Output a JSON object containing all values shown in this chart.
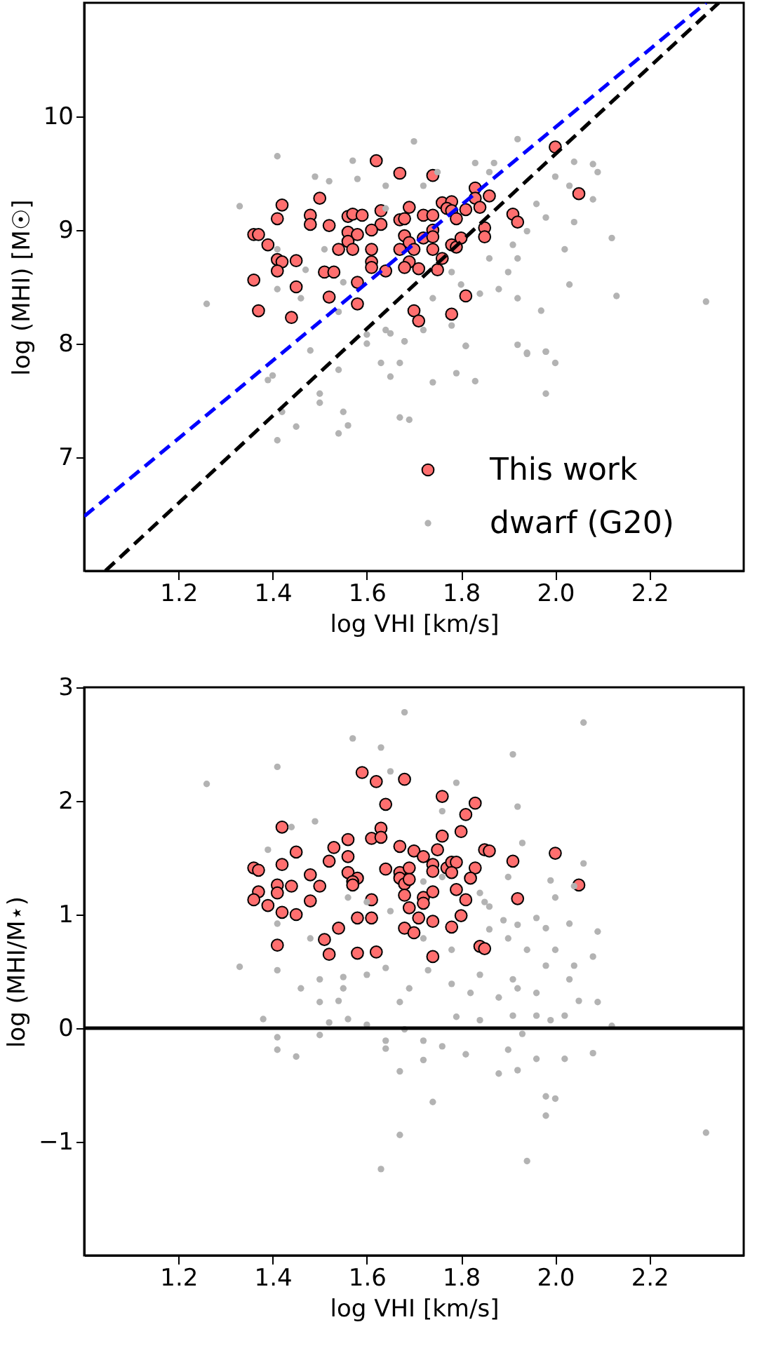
{
  "chart_data": [
    {
      "type": "scatter",
      "xlabel": "log VHI [km/s]",
      "ylabel": "log (MHI) [M☉]",
      "xlim": [
        1.0,
        2.4
      ],
      "xticks": [
        {
          "value": 1.2,
          "label": "1.2"
        },
        {
          "value": 1.4,
          "label": "1.4"
        },
        {
          "value": 1.6,
          "label": "1.6"
        },
        {
          "value": 1.8,
          "label": "1.8"
        },
        {
          "value": 2.0,
          "label": "2.0"
        },
        {
          "value": 2.2,
          "label": "2.2"
        }
      ],
      "ylim": [
        6,
        11
      ],
      "yticks": [
        7,
        8,
        9,
        10
      ],
      "legend": "bottom right",
      "marker": "circle",
      "series": [
        {
          "name": "This work",
          "color": "#ff6f6f",
          "x": [
            1.62,
            1.67,
            1.74,
            2.0,
            2.05,
            1.42,
            1.5,
            1.41,
            1.48,
            1.48,
            1.52,
            1.56,
            1.57,
            1.59,
            1.63,
            1.63,
            1.67,
            1.68,
            1.69,
            1.72,
            1.74,
            1.76,
            1.78,
            1.77,
            1.78,
            1.79,
            1.81,
            1.83,
            1.83,
            1.84,
            1.86,
            1.91,
            1.92,
            1.36,
            1.37,
            1.39,
            1.56,
            1.58,
            1.56,
            1.54,
            1.57,
            1.61,
            1.68,
            1.69,
            1.72,
            1.74,
            1.74,
            1.67,
            1.7,
            1.61,
            1.74,
            1.78,
            1.79,
            1.8,
            1.85,
            1.85,
            1.76,
            1.69,
            1.71,
            1.68,
            1.64,
            1.61,
            1.61,
            1.75,
            1.41,
            1.42,
            1.45,
            1.41,
            1.51,
            1.53,
            1.36,
            1.45,
            1.58,
            1.52,
            1.37,
            1.44,
            1.58,
            1.7,
            1.71,
            1.78,
            1.81
          ],
          "values": [
            9.61,
            9.5,
            9.48,
            9.73,
            9.32,
            9.22,
            9.28,
            9.1,
            9.13,
            9.05,
            9.04,
            9.12,
            9.14,
            9.13,
            9.17,
            9.05,
            9.09,
            9.1,
            9.2,
            9.13,
            9.13,
            9.24,
            9.25,
            9.19,
            9.17,
            9.1,
            9.18,
            9.37,
            9.28,
            9.2,
            9.3,
            9.14,
            9.07,
            8.96,
            8.96,
            8.87,
            8.98,
            8.96,
            8.9,
            8.83,
            8.83,
            9.0,
            8.95,
            8.89,
            8.93,
            9.0,
            8.94,
            8.83,
            8.83,
            8.83,
            8.83,
            8.87,
            8.85,
            8.93,
            9.02,
            8.94,
            8.75,
            8.72,
            8.66,
            8.67,
            8.64,
            8.72,
            8.67,
            8.65,
            8.74,
            8.72,
            8.73,
            8.64,
            8.63,
            8.63,
            8.56,
            8.5,
            8.54,
            8.41,
            8.29,
            8.23,
            8.35,
            8.29,
            8.2,
            8.26,
            8.42
          ]
        },
        {
          "name": "dwarf (G20)",
          "color": "#b3b3b3",
          "x": [
            1.7,
            1.41,
            1.57,
            1.92,
            1.83,
            2.09,
            2.08,
            1.33,
            1.26,
            2.12,
            2.13,
            2.03,
            1.97,
            1.98,
            1.94,
            1.81,
            1.68,
            1.6,
            1.55,
            1.47,
            1.49,
            1.52,
            1.64,
            1.72,
            1.86,
            1.87,
            2.0,
            2.04,
            1.96,
            1.98,
            1.94,
            1.91,
            1.86,
            1.9,
            2.02,
            2.04,
            2.08,
            1.92,
            1.8,
            1.78,
            1.88,
            1.92,
            1.84,
            1.74,
            1.78,
            1.72,
            1.64,
            1.54,
            1.46,
            1.41,
            1.41,
            1.51,
            1.64,
            1.58,
            1.75,
            2.03,
            1.41,
            1.45,
            1.39,
            1.5,
            1.55,
            1.54,
            1.56,
            1.67,
            1.69,
            1.74,
            1.79,
            1.83,
            1.98,
            1.98,
            1.94,
            1.92,
            1.81,
            1.63,
            1.65,
            1.67,
            1.68,
            1.6,
            1.65,
            1.54,
            1.48,
            1.4,
            1.5,
            1.42,
            2.0,
            2.32
          ],
          "values": [
            9.78,
            9.65,
            9.61,
            9.8,
            9.59,
            9.51,
            9.58,
            9.21,
            8.35,
            8.93,
            8.42,
            8.52,
            8.29,
            7.93,
            7.92,
            7.98,
            8.02,
            8.08,
            8.54,
            8.65,
            9.47,
            9.43,
            9.39,
            9.39,
            9.51,
            9.59,
            9.47,
            9.6,
            9.23,
            9.11,
            8.99,
            8.87,
            8.75,
            8.63,
            8.83,
            9.07,
            9.27,
            8.75,
            8.52,
            8.63,
            8.48,
            8.4,
            8.44,
            8.4,
            8.16,
            8.12,
            8.12,
            8.28,
            8.4,
            8.48,
            8.83,
            8.83,
            9.19,
            9.45,
            9.51,
            9.39,
            7.15,
            7.27,
            7.68,
            7.56,
            7.4,
            7.21,
            7.28,
            7.35,
            7.33,
            7.66,
            7.74,
            7.67,
            7.56,
            7.93,
            7.91,
            7.99,
            7.98,
            7.83,
            7.71,
            7.83,
            8.02,
            8.0,
            8.09,
            7.77,
            7.94,
            7.72,
            7.48,
            7.4,
            7.83,
            8.37
          ]
        },
        {
          "type": "line",
          "color": "#0000ff",
          "line_style": "dashed",
          "marker": "none",
          "x": [
            1.0,
            2.32
          ],
          "values": [
            6.48,
            11
          ]
        },
        {
          "type": "line",
          "color": "#000000",
          "line_style": "dashed",
          "marker": "none",
          "x": [
            1.045,
            2.347
          ],
          "values": [
            6,
            11
          ]
        }
      ]
    },
    {
      "type": "scatter",
      "xlabel": "log VHI [km/s]",
      "ylabel": "log (MHI/M⋆)",
      "xlim": [
        1.0,
        2.4
      ],
      "xticks": [
        {
          "value": 1.2,
          "label": "1.2"
        },
        {
          "value": 1.4,
          "label": "1.4"
        },
        {
          "value": 1.6,
          "label": "1.6"
        },
        {
          "value": 1.8,
          "label": "1.8"
        },
        {
          "value": 2.0,
          "label": "2.0"
        },
        {
          "value": 2.2,
          "label": "2.2"
        }
      ],
      "ylim": [
        -2,
        3
      ],
      "yticks": [
        {
          "value": -1,
          "label": "−1"
        },
        0,
        1,
        2,
        3
      ],
      "marker": "circle",
      "ref_lines": [
        {
          "axis": "y",
          "value": 0,
          "color": "#000000"
        }
      ],
      "series": [
        {
          "color": "#ff6f6f",
          "x": [
            1.59,
            1.62,
            1.68,
            1.76,
            1.83,
            1.81,
            1.64,
            1.42,
            1.63,
            1.61,
            1.63,
            1.76,
            1.8,
            1.56,
            1.67,
            1.53,
            1.45,
            1.56,
            1.7,
            1.72,
            1.75,
            1.85,
            1.86,
            2.0,
            1.91,
            1.36,
            1.37,
            1.42,
            1.52,
            1.48,
            1.56,
            1.58,
            1.57,
            1.57,
            1.64,
            1.67,
            1.69,
            1.67,
            1.68,
            1.69,
            1.74,
            1.74,
            1.77,
            1.78,
            1.79,
            1.78,
            1.83,
            1.82,
            1.37,
            1.36,
            1.41,
            1.41,
            1.44,
            1.39,
            1.48,
            1.5,
            1.42,
            1.45,
            1.61,
            1.68,
            1.72,
            1.72,
            1.74,
            1.79,
            1.81,
            1.92,
            2.05,
            1.69,
            1.58,
            1.61,
            1.71,
            1.74,
            1.8,
            1.54,
            1.68,
            1.7,
            1.78,
            1.51,
            1.41,
            1.52,
            1.58,
            1.62,
            1.74,
            1.84,
            1.85
          ],
          "values": [
            2.25,
            2.17,
            2.19,
            2.04,
            1.98,
            1.88,
            1.97,
            1.77,
            1.76,
            1.67,
            1.68,
            1.69,
            1.73,
            1.66,
            1.6,
            1.59,
            1.55,
            1.51,
            1.56,
            1.51,
            1.57,
            1.57,
            1.56,
            1.54,
            1.47,
            1.41,
            1.39,
            1.44,
            1.47,
            1.35,
            1.37,
            1.32,
            1.29,
            1.26,
            1.4,
            1.37,
            1.41,
            1.32,
            1.27,
            1.31,
            1.44,
            1.38,
            1.41,
            1.46,
            1.46,
            1.37,
            1.41,
            1.32,
            1.2,
            1.13,
            1.26,
            1.19,
            1.25,
            1.08,
            1.12,
            1.25,
            1.02,
            1.0,
            1.13,
            1.17,
            1.15,
            1.1,
            1.2,
            1.22,
            1.13,
            1.14,
            1.26,
            1.06,
            0.97,
            0.97,
            0.97,
            0.94,
            0.99,
            0.88,
            0.88,
            0.84,
            0.89,
            0.78,
            0.73,
            0.65,
            0.66,
            0.67,
            0.63,
            0.72,
            0.7
          ]
        },
        {
          "color": "#b3b3b3",
          "x": [
            1.68,
            2.06,
            1.26,
            1.57,
            1.63,
            1.41,
            1.91,
            1.65,
            1.79,
            1.92,
            1.49,
            1.76,
            1.93,
            2.06,
            1.99,
            1.9,
            2.04,
            2.0,
            2.09,
            2.03,
            1.98,
            1.96,
            1.86,
            1.85,
            1.89,
            1.92,
            1.94,
            2.0,
            2.04,
            2.08,
            1.78,
            1.72,
            1.65,
            1.6,
            1.56,
            1.48,
            1.41,
            1.33,
            1.39,
            1.44,
            1.72,
            1.84,
            1.76,
            1.86,
            1.9,
            1.38,
            1.41,
            1.41,
            1.45,
            1.5,
            1.56,
            1.6,
            1.64,
            1.64,
            1.67,
            1.67,
            1.63,
            1.74,
            1.72,
            1.76,
            1.81,
            1.79,
            1.88,
            1.92,
            1.94,
            1.98,
            2.0,
            1.98,
            1.96,
            2.02,
            2.08,
            2.12,
            2.09,
            2.05,
            2.02,
            1.99,
            1.96,
            1.91,
            1.93,
            1.9,
            1.84,
            1.82,
            1.88,
            1.92,
            1.96,
            2.03,
            1.98,
            1.91,
            1.84,
            1.78,
            1.73,
            1.69,
            1.67,
            1.55,
            1.55,
            1.5,
            1.46,
            1.5,
            1.54,
            1.52,
            1.41,
            1.6,
            1.64,
            1.68,
            1.72,
            2.32
          ],
          "values": [
            2.78,
            2.69,
            2.15,
            2.55,
            2.47,
            2.3,
            2.41,
            2.26,
            2.16,
            1.95,
            1.82,
            1.91,
            1.63,
            1.45,
            1.3,
            1.33,
            1.25,
            1.15,
            0.85,
            0.92,
            0.88,
            0.97,
            1.07,
            1.11,
            0.95,
            0.91,
            0.69,
            0.69,
            0.55,
            0.63,
            0.69,
            0.79,
            1.03,
            1.11,
            1.15,
            0.79,
            0.92,
            0.54,
            1.57,
            1.77,
            1.29,
            1.19,
            1.33,
            0.87,
            0.79,
            0.08,
            -0.08,
            -0.19,
            -0.25,
            -0.06,
            0.08,
            0.03,
            -0.11,
            -0.18,
            -0.38,
            -0.94,
            -1.24,
            -0.65,
            -0.28,
            -0.16,
            -0.23,
            0.1,
            -0.4,
            -0.37,
            -1.17,
            -0.6,
            -0.62,
            -0.77,
            -0.27,
            -0.27,
            -0.22,
            0.02,
            0.23,
            0.24,
            0.11,
            0.07,
            0.11,
            0.11,
            -0.05,
            -0.19,
            0.07,
            0.31,
            0.27,
            0.35,
            0.31,
            0.43,
            0.55,
            0.43,
            0.47,
            0.39,
            0.51,
            0.35,
            0.23,
            0.35,
            0.45,
            0.43,
            0.35,
            0.23,
            0.24,
            0.05,
            0.51,
            0.47,
            0.53,
            -0.01,
            -0.11,
            -0.92
          ]
        }
      ]
    }
  ]
}
